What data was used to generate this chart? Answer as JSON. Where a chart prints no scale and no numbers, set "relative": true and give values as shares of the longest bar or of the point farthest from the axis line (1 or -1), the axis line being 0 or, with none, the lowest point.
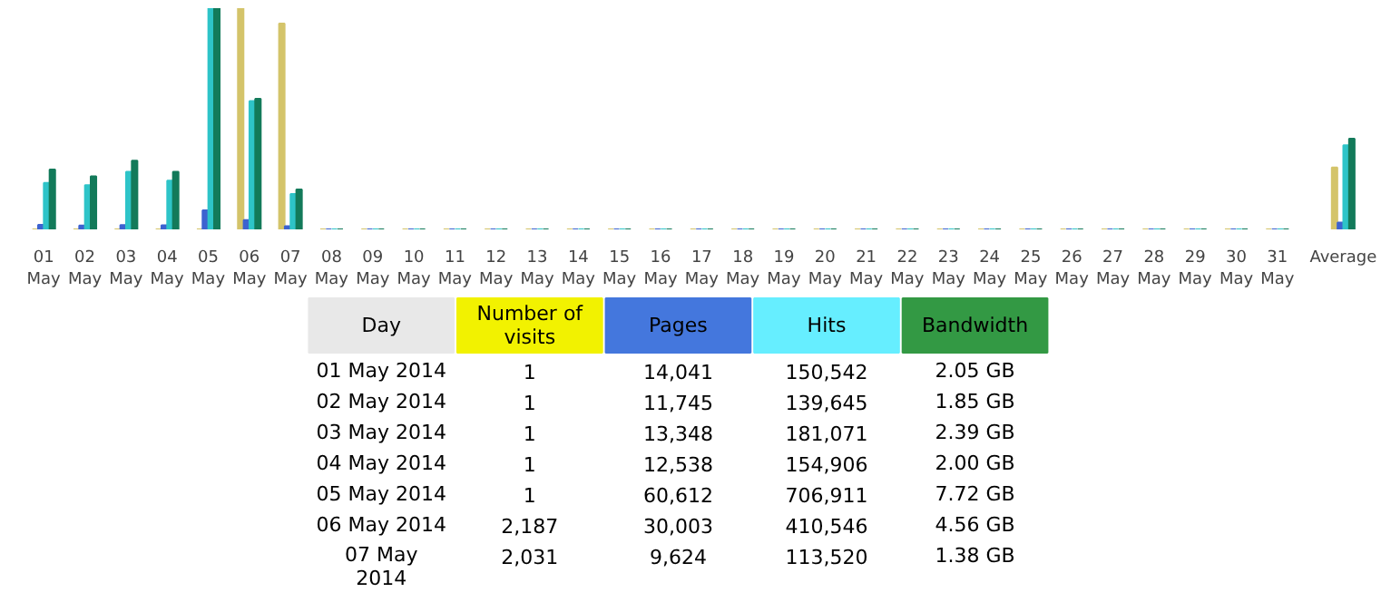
{
  "chart_data": [
    {
      "type": "bar",
      "relative": true,
      "categories": [
        "01\nMay",
        "02\nMay",
        "03\nMay",
        "04\nMay",
        "05\nMay",
        "06\nMay",
        "07\nMay",
        "08\nMay",
        "09\nMay",
        "10\nMay",
        "11\nMay",
        "12\nMay",
        "13\nMay",
        "14\nMay",
        "15\nMay",
        "16\nMay",
        "17\nMay",
        "18\nMay",
        "19\nMay",
        "20\nMay",
        "21\nMay",
        "22\nMay",
        "23\nMay",
        "24\nMay",
        "25\nMay",
        "26\nMay",
        "27\nMay",
        "28\nMay",
        "29\nMay",
        "30\nMay",
        "31\nMay",
        "Average"
      ],
      "series": [
        {
          "color": "#d4c46a",
          "values": [
            0,
            0,
            0,
            0,
            0,
            1,
            0.93,
            0,
            0,
            0,
            0,
            0,
            0,
            0,
            0,
            0,
            0,
            0,
            0,
            0,
            0,
            0,
            0,
            0,
            0,
            0,
            0,
            0,
            0,
            0,
            0,
            0.28
          ]
        },
        {
          "color": "#3d63d0",
          "values": [
            0.02,
            0.017,
            0.019,
            0.018,
            0.086,
            0.042,
            0.014,
            0,
            0,
            0,
            0,
            0,
            0,
            0,
            0,
            0,
            0,
            0,
            0,
            0,
            0,
            0,
            0,
            0,
            0,
            0,
            0,
            0,
            0,
            0,
            0,
            0.031
          ]
        },
        {
          "color": "#2ec4c8",
          "values": [
            0.21,
            0.2,
            0.26,
            0.22,
            1,
            0.58,
            0.16,
            0,
            0,
            0,
            0,
            0,
            0,
            0,
            0,
            0,
            0,
            0,
            0,
            0,
            0,
            0,
            0,
            0,
            0,
            0,
            0,
            0,
            0,
            0,
            0,
            0.38
          ]
        },
        {
          "color": "#137a5a",
          "values": [
            0.27,
            0.24,
            0.31,
            0.26,
            1,
            0.59,
            0.18,
            0,
            0,
            0,
            0,
            0,
            0,
            0,
            0,
            0,
            0,
            0,
            0,
            0,
            0,
            0,
            0,
            0,
            0,
            0,
            0,
            0,
            0,
            0,
            0,
            0.41
          ]
        }
      ]
    },
    {
      "type": "other",
      "categories": [
        "Day",
        "Number of\nvisits",
        "Pages",
        "Hits",
        "Bandwidth"
      ],
      "colors": [
        "#e8e8e8",
        "#f2f200",
        "#4477dd",
        "#66eeff",
        "#339944"
      ],
      "annotations": [
        "01 May 2014",
        "1",
        "14,041",
        "150,542",
        "2.05 GB",
        "02 May 2014",
        "1",
        "11,745",
        "139,645",
        "1.85 GB",
        "03 May 2014",
        "1",
        "13,348",
        "181,071",
        "2.39 GB",
        "04 May 2014",
        "1",
        "12,538",
        "154,906",
        "2.00 GB",
        "05 May 2014",
        "1",
        "60,612",
        "706,911",
        "7.72 GB",
        "06 May 2014",
        "2,187",
        "30,003",
        "410,546",
        "4.56 GB",
        "07 May\n2014",
        "2,031",
        "9,624",
        "113,520",
        "1.38 GB"
      ]
    }
  ]
}
